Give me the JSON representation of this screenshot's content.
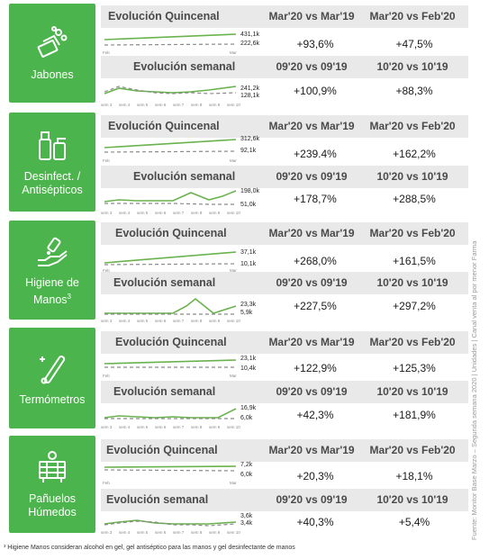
{
  "labels": {
    "quincenal": "Evolución Quincenal",
    "semanal": "Evolución semanal",
    "col_q1": "Mar'20 vs Mar'19",
    "col_q2": "Mar'20 vs Feb'20",
    "col_s1": "09'20 vs 09'19",
    "col_s2": "10'20 vs 10'19",
    "feb": "Feb",
    "mar": "Mar",
    "weeks": [
      "sem 3",
      "sem 4",
      "sem 5",
      "sem 6",
      "sem 7",
      "sem 8",
      "sem 9",
      "sem 10"
    ]
  },
  "source": "Fuente: Monitor Base Marzo – Segunda semana 2020 | Unidades | Canal venta al por menor Farma",
  "footnote": "³ Higiene Manos consideran alcohol en gel, gel antiséptico para las manos y gel desinfectante de manos",
  "colors": {
    "green": "#4cb44c",
    "line_solid": "#6ab24d",
    "line_dashed": "#8a8a8a",
    "header_bg": "#e9e9e9"
  },
  "categories": [
    {
      "name": "Jabones",
      "icon": "soap-icon",
      "q": {
        "v1": "+93,6%",
        "v2": "+47,5%",
        "top": "431,1k",
        "bot": "222,6k"
      },
      "s": {
        "v1": "+100,9%",
        "v2": "+88,3%",
        "top": "241,2k",
        "bot": "128,1k"
      }
    },
    {
      "name": "Desinfect. /\nAntisépticos",
      "icon": "disinfectant-bottles-icon",
      "q": {
        "v1": "+239.4%",
        "v2": "+162,2%",
        "top": "312,6k",
        "bot": "92,1k"
      },
      "s": {
        "v1": "+178,7%",
        "v2": "+288,5%",
        "top": "198,0k",
        "bot": "51,0k"
      }
    },
    {
      "name": "Higiene de\nManos",
      "sup": "3",
      "icon": "hand-sanitizer-icon",
      "q": {
        "v1": "+268,0%",
        "v2": "+161,5%",
        "top": "37,1k",
        "bot": "10,1k"
      },
      "s": {
        "v1": "+227,5%",
        "v2": "+297,2%",
        "top": "23,3k",
        "bot": "5,9k"
      }
    },
    {
      "name": "Termómetros",
      "icon": "thermometer-icon",
      "q": {
        "v1": "+122,9%",
        "v2": "+125,3%",
        "top": "23,1k",
        "bot": "10,4k"
      },
      "s": {
        "v1": "+42,3%",
        "v2": "+181,9%",
        "top": "16,9k",
        "bot": "6,0k"
      }
    },
    {
      "name": "Pañuelos\nHúmedos",
      "icon": "wet-wipes-icon",
      "q": {
        "v1": "+20,3%",
        "v2": "+18,1%",
        "top": "7,2k",
        "bot": "6,0k"
      },
      "s": {
        "v1": "+40,3%",
        "v2": "+5,4%",
        "top": "3,6k",
        "bot": "3,4k"
      }
    }
  ],
  "chart_data": {
    "type": "line",
    "note": "Small multiples: per category, two sparklines (biweekly and weekly) comparing 2020 (solid) vs 2019 (dashed); values are end-point labels.",
    "panels": [
      {
        "category": "Jabones",
        "chart": "Evolución Quincenal",
        "x": [
          "Feb",
          "Mar"
        ],
        "series": [
          {
            "name": "2020",
            "end_value": "431,1k"
          },
          {
            "name": "2019",
            "end_value": "222,6k"
          }
        ]
      },
      {
        "category": "Jabones",
        "chart": "Evolución semanal",
        "x": [
          "sem 3",
          "sem 4",
          "sem 5",
          "sem 6",
          "sem 7",
          "sem 8",
          "sem 9",
          "sem 10"
        ],
        "series": [
          {
            "name": "2020",
            "end_value": "241,2k"
          },
          {
            "name": "2019",
            "end_value": "128,1k"
          }
        ]
      },
      {
        "category": "Desinfect. / Antisépticos",
        "chart": "Evolución Quincenal",
        "x": [
          "Feb",
          "Mar"
        ],
        "series": [
          {
            "name": "2020",
            "end_value": "312,6k"
          },
          {
            "name": "2019",
            "end_value": "92,1k"
          }
        ]
      },
      {
        "category": "Desinfect. / Antisépticos",
        "chart": "Evolución semanal",
        "x": [
          "sem 3",
          "sem 4",
          "sem 5",
          "sem 6",
          "sem 7",
          "sem 8",
          "sem 9",
          "sem 10"
        ],
        "series": [
          {
            "name": "2020",
            "end_value": "198,0k"
          },
          {
            "name": "2019",
            "end_value": "51,0k"
          }
        ]
      },
      {
        "category": "Higiene de Manos",
        "chart": "Evolución Quincenal",
        "x": [
          "Feb",
          "Mar"
        ],
        "series": [
          {
            "name": "2020",
            "end_value": "37,1k"
          },
          {
            "name": "2019",
            "end_value": "10,1k"
          }
        ]
      },
      {
        "category": "Higiene de Manos",
        "chart": "Evolución semanal",
        "x": [
          "sem 3",
          "sem 4",
          "sem 5",
          "sem 6",
          "sem 7",
          "sem 8",
          "sem 9",
          "sem 10"
        ],
        "series": [
          {
            "name": "2020",
            "end_value": "23,3k"
          },
          {
            "name": "2019",
            "end_value": "5,9k"
          }
        ]
      },
      {
        "category": "Termómetros",
        "chart": "Evolución Quincenal",
        "x": [
          "Feb",
          "Mar"
        ],
        "series": [
          {
            "name": "2020",
            "end_value": "23,1k"
          },
          {
            "name": "2019",
            "end_value": "10,4k"
          }
        ]
      },
      {
        "category": "Termómetros",
        "chart": "Evolución semanal",
        "x": [
          "sem 3",
          "sem 4",
          "sem 5",
          "sem 6",
          "sem 7",
          "sem 8",
          "sem 9",
          "sem 10"
        ],
        "series": [
          {
            "name": "2020",
            "end_value": "16,9k"
          },
          {
            "name": "2019",
            "end_value": "6,0k"
          }
        ]
      },
      {
        "category": "Pañuelos Húmedos",
        "chart": "Evolución Quincenal",
        "x": [
          "Feb",
          "Mar"
        ],
        "series": [
          {
            "name": "2020",
            "end_value": "7,2k"
          },
          {
            "name": "2019",
            "end_value": "6,0k"
          }
        ]
      },
      {
        "category": "Pañuelos Húmedos",
        "chart": "Evolución semanal",
        "x": [
          "sem 3",
          "sem 4",
          "sem 5",
          "sem 6",
          "sem 7",
          "sem 8",
          "sem 9",
          "sem 10"
        ],
        "series": [
          {
            "name": "2020",
            "end_value": "3,6k"
          },
          {
            "name": "2019",
            "end_value": "3,4k"
          }
        ]
      }
    ]
  }
}
